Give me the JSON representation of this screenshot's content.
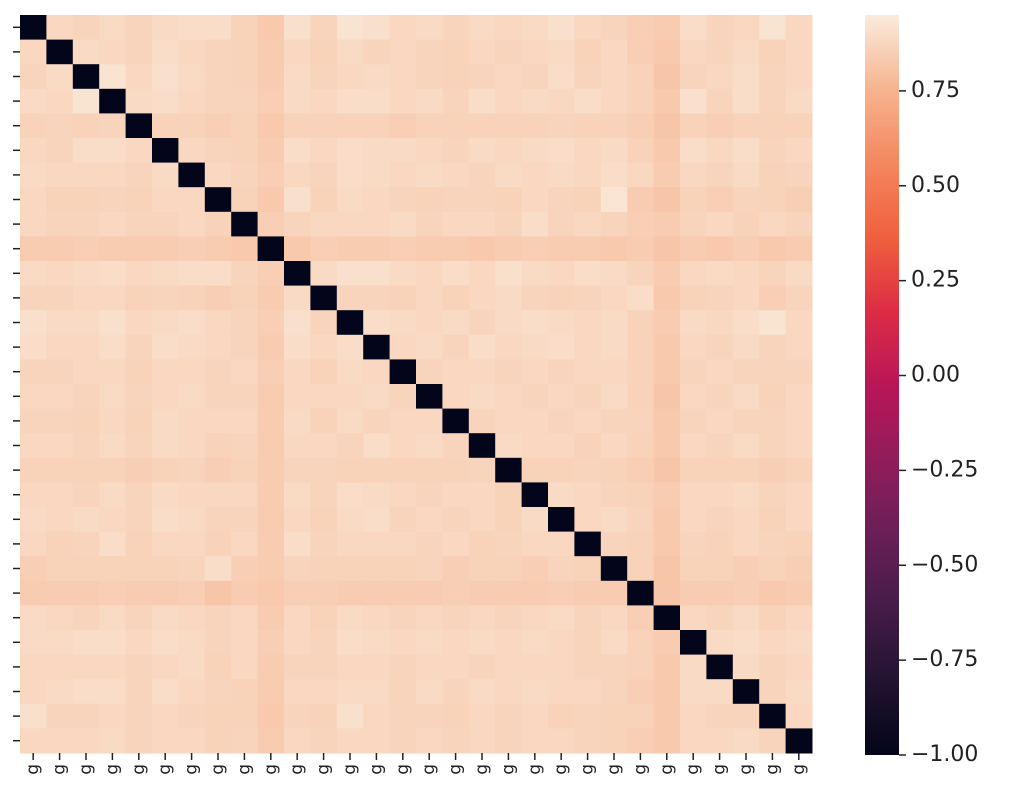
{
  "chart_data": {
    "type": "heatmap",
    "colormap": "rocket",
    "x_categories": [
      "g",
      "g",
      "g",
      "g",
      "g",
      "g",
      "g",
      "g",
      "g",
      "g",
      "g",
      "g",
      "g",
      "g",
      "g",
      "g",
      "g",
      "g",
      "g",
      "g",
      "g",
      "g",
      "g",
      "g",
      "g",
      "g",
      "g",
      "g",
      "g",
      "g"
    ],
    "y_categories": [
      null,
      null,
      null,
      null,
      null,
      null,
      null,
      null,
      null,
      null,
      null,
      null,
      null,
      null,
      null,
      null,
      null,
      null,
      null,
      null,
      null,
      null,
      null,
      null,
      null,
      null,
      null,
      null,
      null,
      null
    ],
    "values": [
      [
        -1,
        0.88,
        0.87,
        0.89,
        0.87,
        0.89,
        0.9,
        0.9,
        0.86,
        0.83,
        0.91,
        0.87,
        0.92,
        0.91,
        0.88,
        0.89,
        0.87,
        0.89,
        0.88,
        0.89,
        0.91,
        0.88,
        0.87,
        0.85,
        0.84,
        0.9,
        0.87,
        0.88,
        0.92,
        0.88
      ],
      [
        0.88,
        -1,
        0.89,
        0.88,
        0.87,
        0.9,
        0.88,
        0.87,
        0.86,
        0.84,
        0.88,
        0.86,
        0.89,
        0.87,
        0.88,
        0.87,
        0.86,
        0.88,
        0.87,
        0.88,
        0.89,
        0.86,
        0.88,
        0.85,
        0.83,
        0.88,
        0.87,
        0.89,
        0.86,
        0.88
      ],
      [
        0.87,
        0.89,
        -1,
        0.92,
        0.88,
        0.91,
        0.89,
        0.87,
        0.86,
        0.84,
        0.89,
        0.87,
        0.88,
        0.89,
        0.88,
        0.87,
        0.86,
        0.87,
        0.88,
        0.87,
        0.9,
        0.87,
        0.88,
        0.86,
        0.82,
        0.87,
        0.88,
        0.9,
        0.87,
        0.88
      ],
      [
        0.89,
        0.88,
        0.92,
        -1,
        0.89,
        0.9,
        0.88,
        0.87,
        0.87,
        0.85,
        0.89,
        0.88,
        0.9,
        0.9,
        0.88,
        0.89,
        0.87,
        0.9,
        0.88,
        0.89,
        0.88,
        0.9,
        0.88,
        0.86,
        0.83,
        0.91,
        0.87,
        0.9,
        0.87,
        0.89
      ],
      [
        0.86,
        0.87,
        0.86,
        0.87,
        -1,
        0.86,
        0.86,
        0.85,
        0.86,
        0.83,
        0.86,
        0.86,
        0.86,
        0.86,
        0.85,
        0.86,
        0.86,
        0.86,
        0.86,
        0.86,
        0.87,
        0.86,
        0.86,
        0.85,
        0.82,
        0.86,
        0.85,
        0.86,
        0.86,
        0.86
      ],
      [
        0.88,
        0.87,
        0.9,
        0.9,
        0.88,
        -1,
        0.88,
        0.87,
        0.86,
        0.84,
        0.9,
        0.88,
        0.9,
        0.89,
        0.89,
        0.88,
        0.87,
        0.89,
        0.88,
        0.89,
        0.9,
        0.88,
        0.89,
        0.86,
        0.83,
        0.9,
        0.88,
        0.9,
        0.87,
        0.88
      ],
      [
        0.89,
        0.88,
        0.88,
        0.88,
        0.87,
        0.89,
        -1,
        0.88,
        0.87,
        0.85,
        0.88,
        0.87,
        0.9,
        0.89,
        0.88,
        0.89,
        0.88,
        0.87,
        0.89,
        0.88,
        0.89,
        0.88,
        0.9,
        0.88,
        0.84,
        0.88,
        0.87,
        0.89,
        0.86,
        0.87
      ],
      [
        0.88,
        0.86,
        0.86,
        0.87,
        0.86,
        0.88,
        0.88,
        -1,
        0.86,
        0.83,
        0.91,
        0.86,
        0.89,
        0.88,
        0.87,
        0.86,
        0.87,
        0.87,
        0.86,
        0.88,
        0.87,
        0.86,
        0.93,
        0.84,
        0.82,
        0.86,
        0.85,
        0.87,
        0.86,
        0.85
      ],
      [
        0.88,
        0.87,
        0.87,
        0.88,
        0.87,
        0.87,
        0.88,
        0.86,
        -1,
        0.85,
        0.87,
        0.88,
        0.88,
        0.88,
        0.89,
        0.87,
        0.88,
        0.88,
        0.87,
        0.9,
        0.87,
        0.88,
        0.87,
        0.85,
        0.84,
        0.87,
        0.88,
        0.86,
        0.88,
        0.87
      ],
      [
        0.84,
        0.84,
        0.85,
        0.84,
        0.84,
        0.84,
        0.85,
        0.84,
        0.83,
        -1,
        0.83,
        0.85,
        0.84,
        0.84,
        0.85,
        0.84,
        0.84,
        0.83,
        0.84,
        0.85,
        0.84,
        0.84,
        0.83,
        0.84,
        0.82,
        0.84,
        0.83,
        0.85,
        0.83,
        0.84
      ],
      [
        0.89,
        0.88,
        0.89,
        0.9,
        0.88,
        0.89,
        0.9,
        0.9,
        0.87,
        0.85,
        -1,
        0.89,
        0.91,
        0.91,
        0.89,
        0.88,
        0.9,
        0.88,
        0.91,
        0.89,
        0.88,
        0.9,
        0.89,
        0.87,
        0.84,
        0.88,
        0.89,
        0.88,
        0.87,
        0.89
      ],
      [
        0.87,
        0.87,
        0.88,
        0.88,
        0.86,
        0.87,
        0.86,
        0.85,
        0.86,
        0.84,
        0.89,
        -1,
        0.87,
        0.87,
        0.86,
        0.88,
        0.86,
        0.88,
        0.89,
        0.87,
        0.86,
        0.87,
        0.88,
        0.9,
        0.83,
        0.86,
        0.87,
        0.88,
        0.85,
        0.87
      ],
      [
        0.91,
        0.89,
        0.89,
        0.91,
        0.88,
        0.89,
        0.9,
        0.88,
        0.87,
        0.85,
        0.91,
        0.87,
        -1,
        0.9,
        0.89,
        0.88,
        0.89,
        0.87,
        0.89,
        0.9,
        0.89,
        0.88,
        0.89,
        0.86,
        0.84,
        0.89,
        0.88,
        0.9,
        0.92,
        0.88
      ],
      [
        0.9,
        0.88,
        0.88,
        0.9,
        0.87,
        0.9,
        0.89,
        0.88,
        0.87,
        0.84,
        0.9,
        0.88,
        0.9,
        -1,
        0.88,
        0.89,
        0.87,
        0.9,
        0.88,
        0.89,
        0.9,
        0.88,
        0.89,
        0.86,
        0.83,
        0.88,
        0.87,
        0.89,
        0.87,
        0.88
      ],
      [
        0.87,
        0.87,
        0.88,
        0.88,
        0.86,
        0.88,
        0.88,
        0.87,
        0.88,
        0.85,
        0.88,
        0.86,
        0.89,
        0.88,
        -1,
        0.87,
        0.88,
        0.88,
        0.87,
        0.88,
        0.87,
        0.88,
        0.88,
        0.86,
        0.83,
        0.87,
        0.88,
        0.87,
        0.87,
        0.87
      ],
      [
        0.88,
        0.88,
        0.87,
        0.89,
        0.87,
        0.88,
        0.89,
        0.87,
        0.87,
        0.84,
        0.88,
        0.88,
        0.88,
        0.89,
        0.87,
        -1,
        0.88,
        0.89,
        0.88,
        0.87,
        0.88,
        0.87,
        0.89,
        0.86,
        0.82,
        0.88,
        0.87,
        0.89,
        0.86,
        0.88
      ],
      [
        0.87,
        0.87,
        0.86,
        0.88,
        0.86,
        0.89,
        0.88,
        0.88,
        0.88,
        0.84,
        0.89,
        0.86,
        0.89,
        0.87,
        0.88,
        0.88,
        -1,
        0.87,
        0.88,
        0.88,
        0.87,
        0.88,
        0.87,
        0.87,
        0.83,
        0.87,
        0.88,
        0.87,
        0.87,
        0.88
      ],
      [
        0.88,
        0.88,
        0.87,
        0.89,
        0.87,
        0.89,
        0.88,
        0.86,
        0.87,
        0.84,
        0.88,
        0.88,
        0.87,
        0.9,
        0.88,
        0.89,
        0.87,
        -1,
        0.89,
        0.88,
        0.88,
        0.86,
        0.88,
        0.86,
        0.83,
        0.88,
        0.87,
        0.89,
        0.87,
        0.88
      ],
      [
        0.86,
        0.86,
        0.86,
        0.86,
        0.85,
        0.86,
        0.87,
        0.85,
        0.86,
        0.84,
        0.87,
        0.87,
        0.86,
        0.86,
        0.86,
        0.86,
        0.86,
        0.87,
        -1,
        0.86,
        0.86,
        0.87,
        0.86,
        0.85,
        0.82,
        0.86,
        0.86,
        0.86,
        0.85,
        0.86
      ],
      [
        0.88,
        0.88,
        0.87,
        0.89,
        0.87,
        0.89,
        0.88,
        0.88,
        0.88,
        0.84,
        0.89,
        0.87,
        0.9,
        0.89,
        0.88,
        0.87,
        0.88,
        0.88,
        0.86,
        -1,
        0.89,
        0.88,
        0.87,
        0.86,
        0.84,
        0.88,
        0.88,
        0.89,
        0.87,
        0.88
      ],
      [
        0.89,
        0.88,
        0.89,
        0.88,
        0.87,
        0.9,
        0.89,
        0.87,
        0.87,
        0.84,
        0.88,
        0.86,
        0.89,
        0.9,
        0.87,
        0.88,
        0.87,
        0.88,
        0.86,
        0.89,
        -1,
        0.88,
        0.89,
        0.87,
        0.83,
        0.88,
        0.87,
        0.88,
        0.86,
        0.88
      ],
      [
        0.88,
        0.86,
        0.87,
        0.9,
        0.86,
        0.88,
        0.88,
        0.86,
        0.88,
        0.84,
        0.9,
        0.87,
        0.88,
        0.88,
        0.88,
        0.87,
        0.88,
        0.86,
        0.87,
        0.88,
        0.88,
        -1,
        0.87,
        0.86,
        0.83,
        0.87,
        0.86,
        0.88,
        0.87,
        0.86
      ],
      [
        0.85,
        0.86,
        0.86,
        0.86,
        0.86,
        0.86,
        0.87,
        0.9,
        0.85,
        0.84,
        0.87,
        0.86,
        0.86,
        0.86,
        0.86,
        0.87,
        0.85,
        0.86,
        0.86,
        0.85,
        0.87,
        0.86,
        -1,
        0.86,
        0.82,
        0.86,
        0.86,
        0.85,
        0.86,
        0.85
      ],
      [
        0.84,
        0.84,
        0.84,
        0.85,
        0.84,
        0.84,
        0.85,
        0.82,
        0.84,
        0.83,
        0.85,
        0.85,
        0.84,
        0.84,
        0.84,
        0.84,
        0.85,
        0.84,
        0.84,
        0.84,
        0.85,
        0.84,
        0.84,
        -1,
        0.82,
        0.84,
        0.84,
        0.85,
        0.83,
        0.84
      ],
      [
        0.89,
        0.88,
        0.87,
        0.89,
        0.87,
        0.89,
        0.88,
        0.87,
        0.88,
        0.84,
        0.88,
        0.86,
        0.89,
        0.88,
        0.87,
        0.88,
        0.87,
        0.88,
        0.87,
        0.88,
        0.89,
        0.87,
        0.88,
        0.85,
        -1,
        0.88,
        0.87,
        0.89,
        0.86,
        0.88
      ],
      [
        0.89,
        0.89,
        0.9,
        0.9,
        0.88,
        0.9,
        0.89,
        0.87,
        0.88,
        0.85,
        0.88,
        0.87,
        0.9,
        0.89,
        0.88,
        0.89,
        0.88,
        0.89,
        0.88,
        0.89,
        0.88,
        0.87,
        0.89,
        0.86,
        0.84,
        -1,
        0.89,
        0.9,
        0.88,
        0.89
      ],
      [
        0.88,
        0.88,
        0.88,
        0.88,
        0.87,
        0.88,
        0.89,
        0.86,
        0.88,
        0.84,
        0.87,
        0.87,
        0.88,
        0.88,
        0.87,
        0.88,
        0.88,
        0.87,
        0.88,
        0.88,
        0.88,
        0.87,
        0.87,
        0.86,
        0.83,
        0.89,
        -1,
        0.89,
        0.87,
        0.88
      ],
      [
        0.88,
        0.89,
        0.9,
        0.9,
        0.87,
        0.9,
        0.88,
        0.87,
        0.86,
        0.84,
        0.88,
        0.88,
        0.89,
        0.89,
        0.87,
        0.89,
        0.87,
        0.89,
        0.88,
        0.89,
        0.88,
        0.88,
        0.87,
        0.85,
        0.83,
        0.89,
        0.89,
        -1,
        0.87,
        0.89
      ],
      [
        0.91,
        0.87,
        0.87,
        0.88,
        0.87,
        0.88,
        0.87,
        0.86,
        0.86,
        0.83,
        0.87,
        0.86,
        0.91,
        0.88,
        0.87,
        0.87,
        0.86,
        0.88,
        0.87,
        0.88,
        0.86,
        0.87,
        0.86,
        0.86,
        0.83,
        0.88,
        0.87,
        0.87,
        -1,
        0.88
      ],
      [
        0.88,
        0.88,
        0.88,
        0.89,
        0.87,
        0.88,
        0.88,
        0.86,
        0.87,
        0.84,
        0.88,
        0.87,
        0.88,
        0.88,
        0.87,
        0.88,
        0.87,
        0.88,
        0.87,
        0.88,
        0.88,
        0.87,
        0.86,
        0.85,
        0.83,
        0.88,
        0.88,
        0.89,
        0.87,
        -1
      ]
    ],
    "colorbar": {
      "lim": [
        -1,
        0.95
      ],
      "ticks": [
        {
          "value": -1,
          "label": "−1.00"
        },
        {
          "value": -0.75,
          "label": "−0.75"
        },
        {
          "value": -0.5,
          "label": "−0.50"
        },
        {
          "value": -0.25,
          "label": "−0.25"
        },
        {
          "value": 0,
          "label": "0.00"
        },
        {
          "value": 0.25,
          "label": "0.25"
        },
        {
          "value": 0.5,
          "label": "0.50"
        },
        {
          "value": 0.75,
          "label": "0.75"
        }
      ]
    }
  }
}
